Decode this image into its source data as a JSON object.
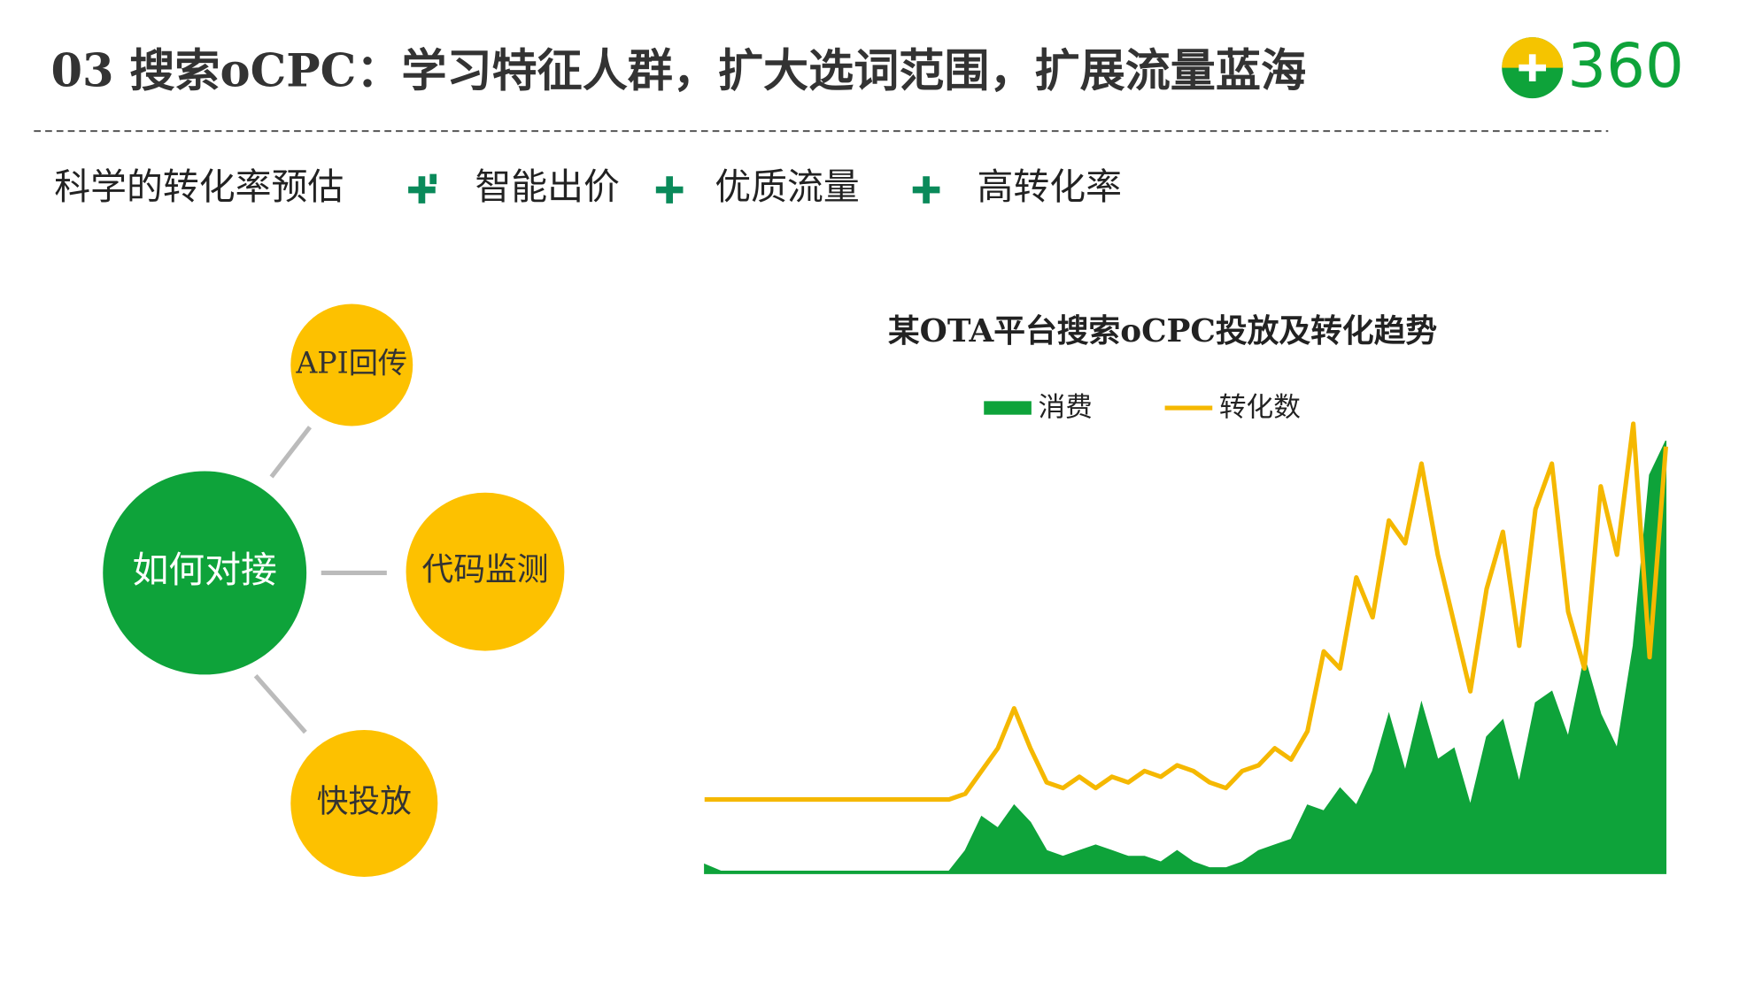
{
  "header": {
    "title": "03 搜索oCPC：学习特征人群，扩大选词范围，扩展流量蓝海",
    "logo": "360"
  },
  "features": [
    "科学的转化率预估",
    "智能出价",
    "优质流量",
    "高转化率"
  ],
  "diagram": {
    "center": "如何对接",
    "nodes": [
      "API回传",
      "代码监测",
      "快投放"
    ]
  },
  "chart_data": {
    "type": "line",
    "title": "某OTA平台搜索oCPC投放及转化趋势",
    "legend": "top",
    "series": [
      {
        "name": "消费",
        "color": "#0ea33a",
        "fill": true,
        "values": [
          8,
          2,
          2,
          2,
          2,
          2,
          2,
          2,
          2,
          2,
          2,
          2,
          2,
          2,
          2,
          2,
          20,
          50,
          40,
          60,
          45,
          20,
          15,
          20,
          25,
          20,
          15,
          15,
          10,
          20,
          10,
          5,
          5,
          10,
          20,
          25,
          30,
          60,
          55,
          75,
          60,
          90,
          140,
          90,
          150,
          100,
          110,
          60,
          120,
          135,
          80,
          150,
          160,
          120,
          190,
          140,
          110,
          200,
          350,
          380
        ]
      },
      {
        "name": "转化数",
        "color": "#f5b800",
        "fill": false,
        "values": [
          65,
          65,
          65,
          65,
          65,
          65,
          65,
          65,
          65,
          65,
          65,
          65,
          65,
          65,
          65,
          65,
          70,
          90,
          110,
          145,
          110,
          80,
          75,
          85,
          75,
          85,
          80,
          90,
          85,
          95,
          90,
          80,
          75,
          90,
          95,
          110,
          100,
          125,
          195,
          180,
          260,
          225,
          310,
          290,
          360,
          280,
          220,
          160,
          250,
          300,
          200,
          320,
          360,
          230,
          180,
          340,
          280,
          395,
          190,
          375
        ]
      }
    ]
  }
}
